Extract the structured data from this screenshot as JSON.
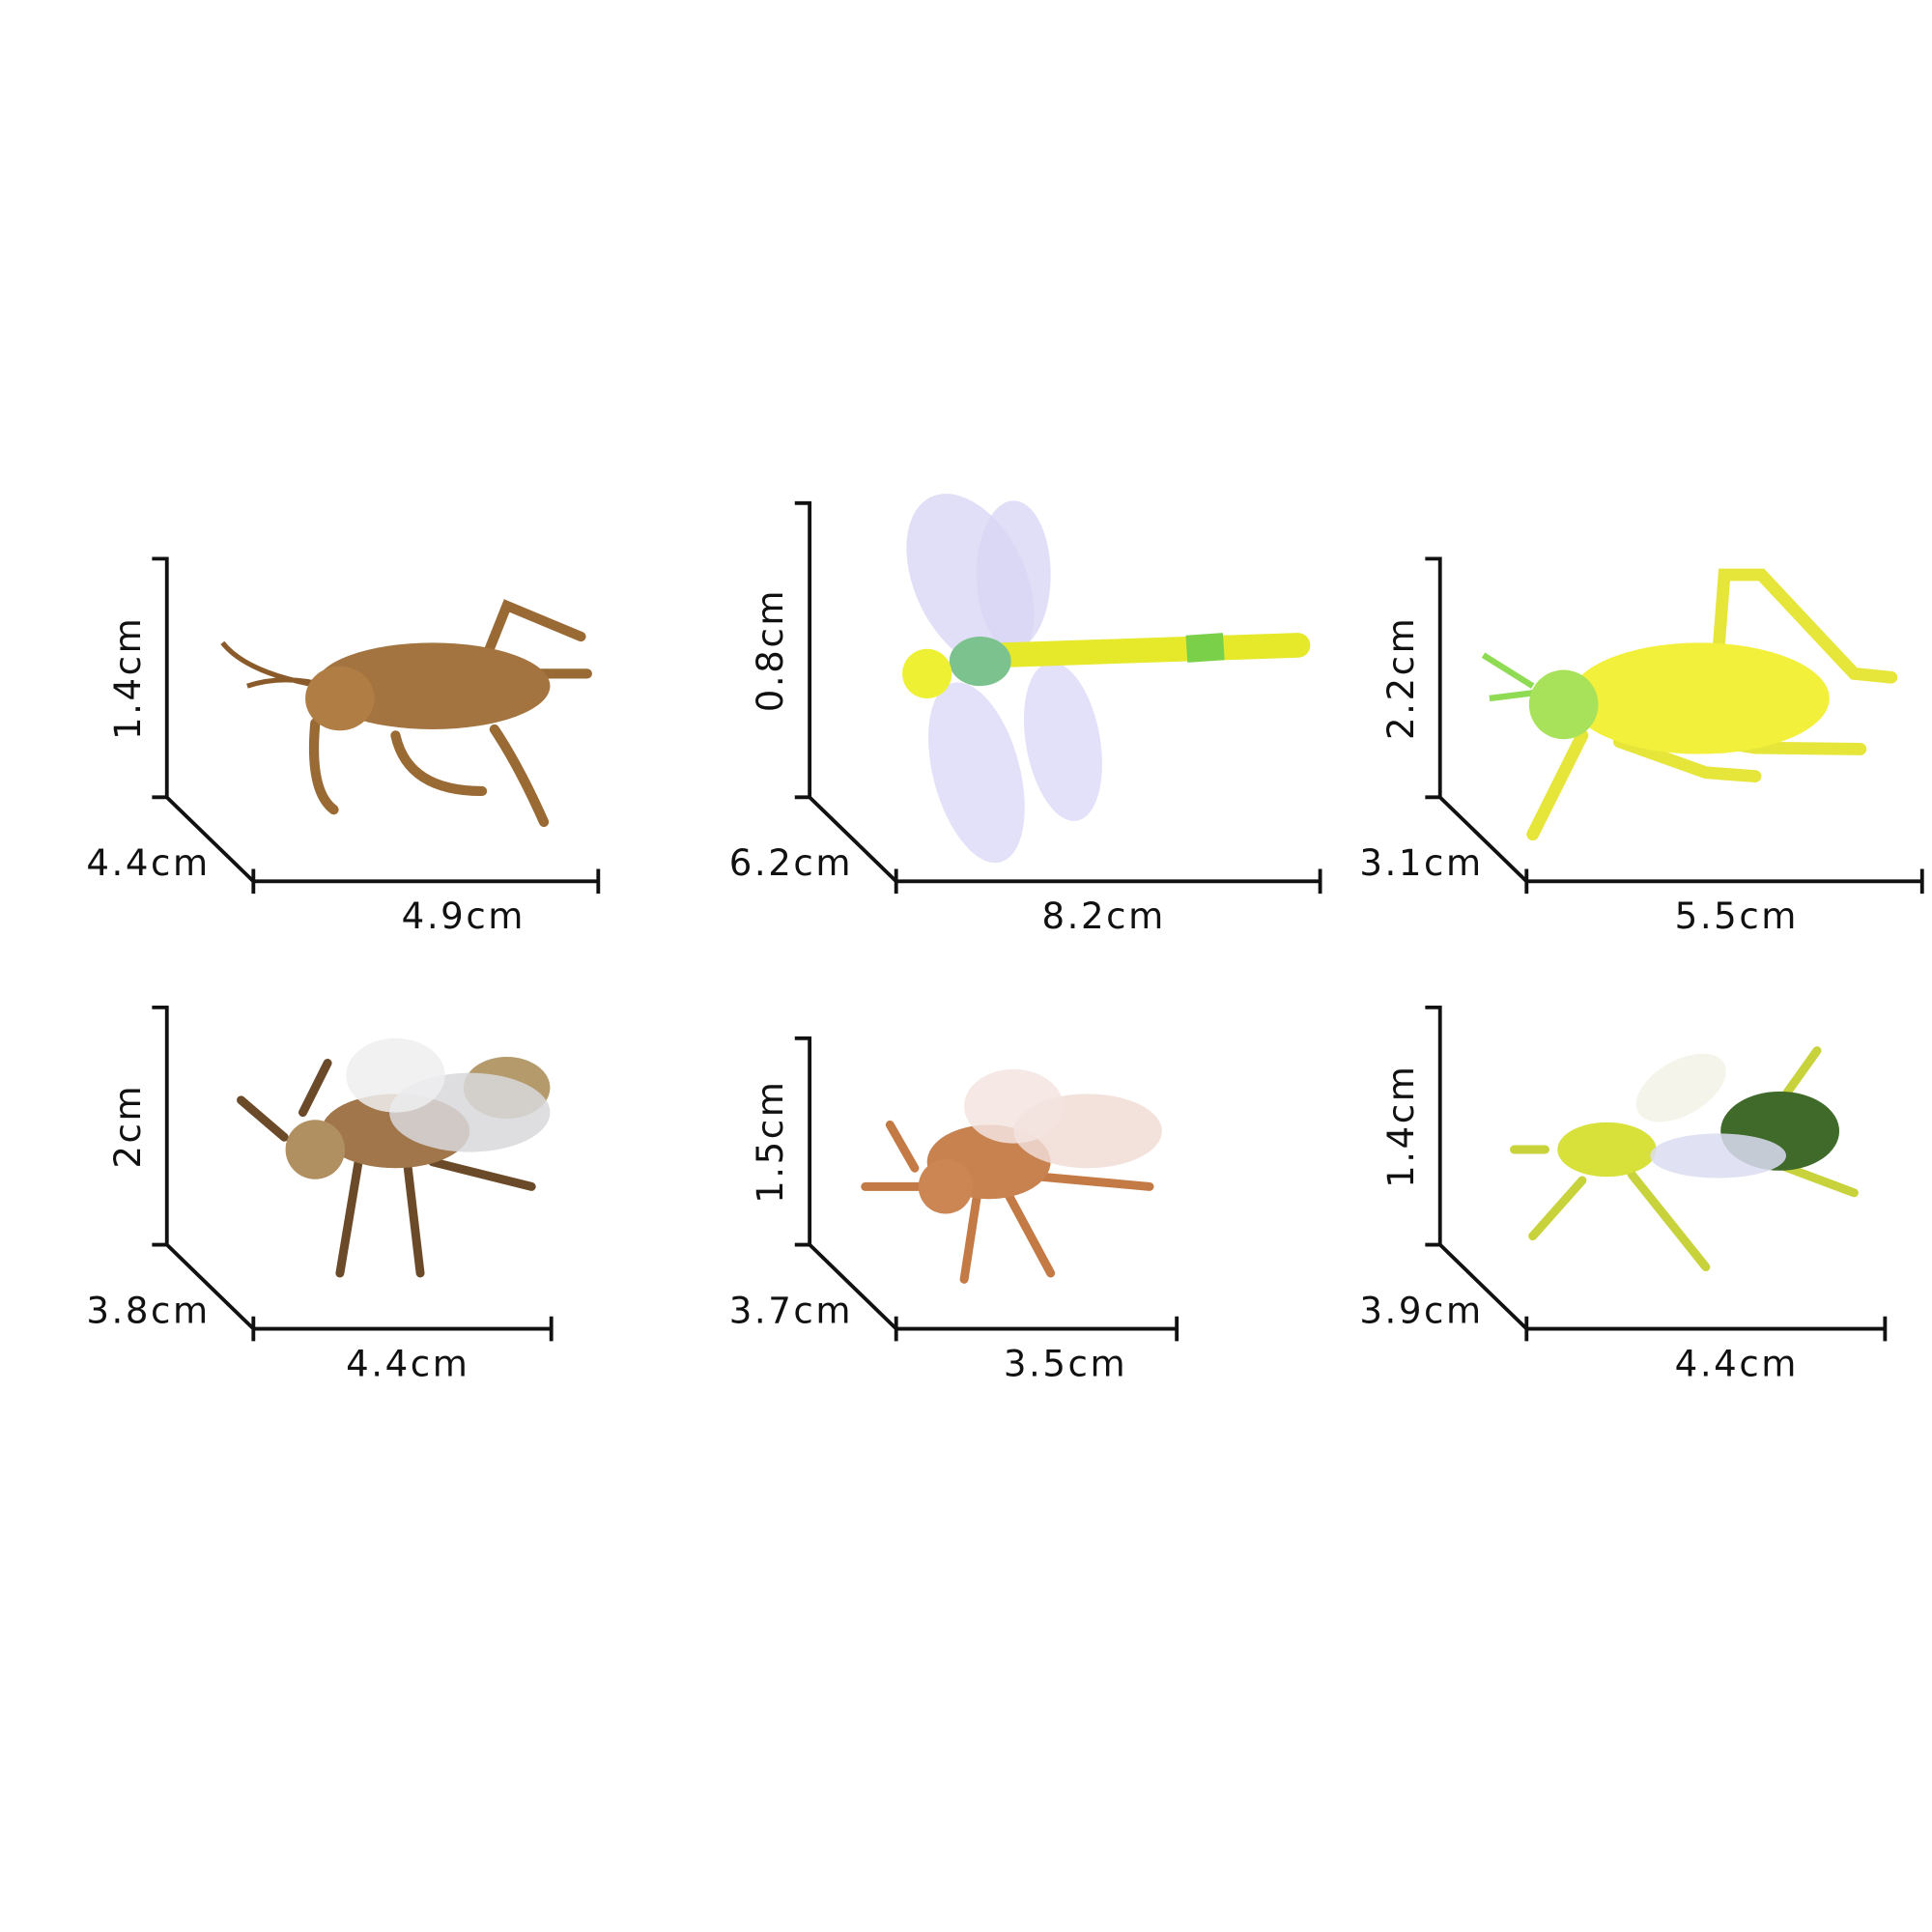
{
  "items": [
    {
      "height": "1.4cm",
      "depth": "4.4cm",
      "width": "4.9cm"
    },
    {
      "height": "0.8cm",
      "depth": "6.2cm",
      "width": "8.2cm"
    },
    {
      "height": "2.2cm",
      "depth": "3.1cm",
      "width": "5.5cm"
    },
    {
      "height": "2cm",
      "depth": "3.8cm",
      "width": "4.4cm"
    },
    {
      "height": "1.5cm",
      "depth": "3.7cm",
      "width": "3.5cm"
    },
    {
      "height": "1.4cm",
      "depth": "3.9cm",
      "width": "4.4cm"
    }
  ]
}
